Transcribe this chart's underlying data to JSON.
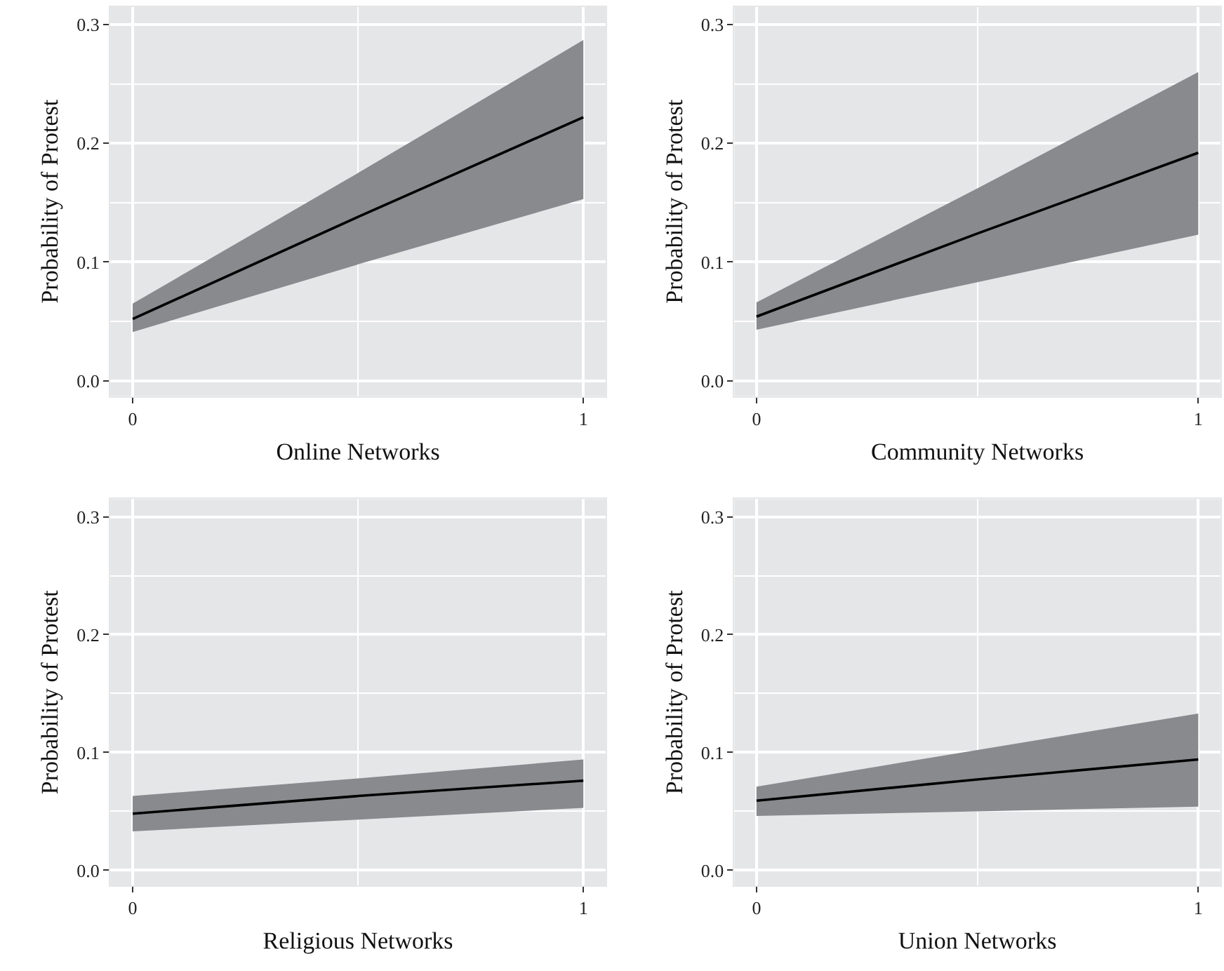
{
  "chart_data": [
    {
      "type": "line",
      "xlabel": "Online Networks",
      "ylabel": "Probability of Protest",
      "xlim": [
        -0.05,
        1.05
      ],
      "ylim": [
        -0.013,
        0.315
      ],
      "xticks": [
        0,
        1
      ],
      "yticks": [
        {
          "value": 0,
          "label": "0.0"
        },
        {
          "value": 0.1,
          "label": "0.1"
        },
        {
          "value": 0.2,
          "label": "0.2"
        },
        {
          "value": 0.3,
          "label": "0.3"
        }
      ],
      "grid": true,
      "x": [
        0,
        0.5,
        1
      ],
      "series": [
        {
          "color": "#000000",
          "values": [
            0.052,
            0.138,
            0.222
          ],
          "lower": [
            0.041,
            0.098,
            0.153
          ],
          "upper": [
            0.065,
            0.175,
            0.287
          ]
        }
      ]
    },
    {
      "type": "line",
      "xlabel": "Community Networks",
      "ylabel": "Probability of Protest",
      "xlim": [
        -0.05,
        1.05
      ],
      "ylim": [
        -0.013,
        0.315
      ],
      "xticks": [
        0,
        1
      ],
      "yticks": [
        {
          "value": 0,
          "label": "0.0"
        },
        {
          "value": 0.1,
          "label": "0.1"
        },
        {
          "value": 0.2,
          "label": "0.2"
        },
        {
          "value": 0.3,
          "label": "0.3"
        }
      ],
      "grid": true,
      "x": [
        0,
        0.5,
        1
      ],
      "series": [
        {
          "color": "#000000",
          "values": [
            0.054,
            0.124,
            0.192
          ],
          "lower": [
            0.043,
            0.083,
            0.123
          ],
          "upper": [
            0.066,
            0.162,
            0.26
          ]
        }
      ]
    },
    {
      "type": "line",
      "xlabel": "Religious Networks",
      "ylabel": "Probability of Protest",
      "xlim": [
        -0.05,
        1.05
      ],
      "ylim": [
        -0.013,
        0.315
      ],
      "xticks": [
        0,
        1
      ],
      "yticks": [
        {
          "value": 0,
          "label": "0.0"
        },
        {
          "value": 0.1,
          "label": "0.1"
        },
        {
          "value": 0.2,
          "label": "0.2"
        },
        {
          "value": 0.3,
          "label": "0.3"
        }
      ],
      "grid": true,
      "x": [
        0,
        0.5,
        1
      ],
      "series": [
        {
          "color": "#000000",
          "values": [
            0.048,
            0.063,
            0.076
          ],
          "lower": [
            0.033,
            0.043,
            0.053
          ],
          "upper": [
            0.063,
            0.078,
            0.094
          ]
        }
      ]
    },
    {
      "type": "line",
      "xlabel": "Union Networks",
      "ylabel": "Probability of Protest",
      "xlim": [
        -0.05,
        1.05
      ],
      "ylim": [
        -0.013,
        0.315
      ],
      "xticks": [
        0,
        1
      ],
      "yticks": [
        {
          "value": 0,
          "label": "0.0"
        },
        {
          "value": 0.1,
          "label": "0.1"
        },
        {
          "value": 0.2,
          "label": "0.2"
        },
        {
          "value": 0.3,
          "label": "0.3"
        }
      ],
      "grid": true,
      "x": [
        0,
        0.5,
        1
      ],
      "series": [
        {
          "color": "#000000",
          "values": [
            0.059,
            0.077,
            0.094
          ],
          "lower": [
            0.046,
            0.05,
            0.054
          ],
          "upper": [
            0.071,
            0.102,
            0.133
          ]
        }
      ]
    }
  ]
}
